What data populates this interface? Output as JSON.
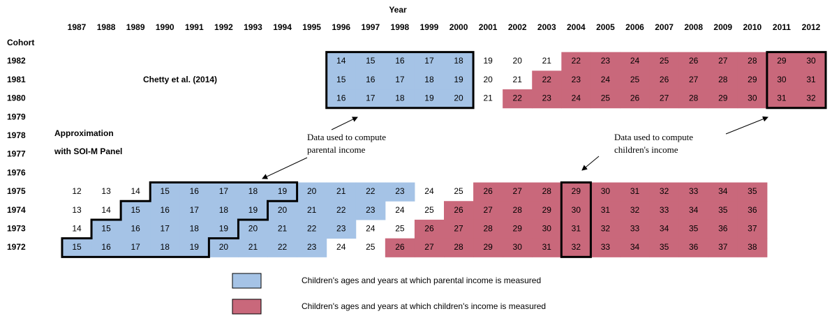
{
  "header": {
    "title": "Year",
    "row_title": "Cohort",
    "years": [
      "1987",
      "1988",
      "1989",
      "1990",
      "1991",
      "1992",
      "1993",
      "1994",
      "1995",
      "1996",
      "1997",
      "1998",
      "1999",
      "2000",
      "2001",
      "2002",
      "2003",
      "2004",
      "2005",
      "2006",
      "2007",
      "2008",
      "2009",
      "2010",
      "2011",
      "2012"
    ]
  },
  "rows": [
    {
      "cohort": "1982",
      "ages": [
        14,
        15,
        16,
        17,
        18,
        19,
        20,
        21,
        22,
        23,
        24,
        25,
        26,
        27,
        28,
        29,
        30
      ],
      "colors": [
        "#a5c3e6",
        "#a5c3e6",
        "#a5c3e6",
        "#a5c3e6",
        "#a5c3e6",
        null,
        null,
        null,
        "#c9687b",
        "#c9687b",
        "#c9687b",
        "#c9687b",
        "#c9687b",
        "#c9687b",
        "#c9687b",
        "#c9687b",
        "#c9687b"
      ]
    },
    {
      "cohort": "1981",
      "ages": [
        15,
        16,
        17,
        18,
        19,
        20,
        21,
        22,
        23,
        24,
        25,
        26,
        27,
        28,
        29,
        30,
        31
      ],
      "colors": [
        "#a5c3e6",
        "#a5c3e6",
        "#a5c3e6",
        "#a5c3e6",
        "#a5c3e6",
        null,
        null,
        "#c9687b",
        "#c9687b",
        "#c9687b",
        "#c9687b",
        "#c9687b",
        "#c9687b",
        "#c9687b",
        "#c9687b",
        "#c9687b",
        "#c9687b"
      ]
    },
    {
      "cohort": "1980",
      "ages": [
        16,
        17,
        18,
        19,
        20,
        21,
        22,
        23,
        24,
        25,
        26,
        27,
        28,
        29,
        30,
        31,
        32
      ],
      "colors": [
        "#a5c3e6",
        "#a5c3e6",
        "#a5c3e6",
        "#a5c3e6",
        "#a5c3e6",
        null,
        "#c9687b",
        "#c9687b",
        "#c9687b",
        "#c9687b",
        "#c9687b",
        "#c9687b",
        "#c9687b",
        "#c9687b",
        "#c9687b",
        "#c9687b",
        "#c9687b"
      ]
    },
    {
      "cohort": "1979",
      "ages": [],
      "colors": []
    },
    {
      "cohort": "1978",
      "ages": [],
      "colors": []
    },
    {
      "cohort": "1977",
      "ages": [],
      "colors": []
    },
    {
      "cohort": "1976",
      "ages": [],
      "colors": []
    },
    {
      "cohort": "1975",
      "ages": [
        12,
        13,
        14,
        15,
        16,
        17,
        18,
        19,
        20,
        21,
        22,
        23,
        24,
        25,
        26,
        27,
        28,
        29,
        30,
        31,
        32,
        33,
        34,
        35
      ],
      "colors": [
        null,
        null,
        null,
        "#a5c3e6",
        "#a5c3e6",
        "#a5c3e6",
        "#a5c3e6",
        "#a5c3e6",
        "#a5c3e6",
        "#a5c3e6",
        "#a5c3e6",
        "#a5c3e6",
        null,
        null,
        "#c9687b",
        "#c9687b",
        "#c9687b",
        "#c9687b",
        "#c9687b",
        "#c9687b",
        "#c9687b",
        "#c9687b",
        "#c9687b",
        "#c9687b"
      ]
    },
    {
      "cohort": "1974",
      "ages": [
        13,
        14,
        15,
        16,
        17,
        18,
        19,
        20,
        21,
        22,
        23,
        24,
        25,
        26,
        27,
        28,
        29,
        30,
        31,
        32,
        33,
        34,
        35,
        36
      ],
      "colors": [
        null,
        null,
        "#a5c3e6",
        "#a5c3e6",
        "#a5c3e6",
        "#a5c3e6",
        "#a5c3e6",
        "#a5c3e6",
        "#a5c3e6",
        "#a5c3e6",
        "#a5c3e6",
        null,
        null,
        "#c9687b",
        "#c9687b",
        "#c9687b",
        "#c9687b",
        "#c9687b",
        "#c9687b",
        "#c9687b",
        "#c9687b",
        "#c9687b",
        "#c9687b",
        "#c9687b"
      ]
    },
    {
      "cohort": "1973",
      "ages": [
        14,
        15,
        16,
        17,
        18,
        19,
        20,
        21,
        22,
        23,
        24,
        25,
        26,
        27,
        28,
        29,
        30,
        31,
        32,
        33,
        34,
        35,
        36,
        37
      ],
      "colors": [
        null,
        "#a5c3e6",
        "#a5c3e6",
        "#a5c3e6",
        "#a5c3e6",
        "#a5c3e6",
        "#a5c3e6",
        "#a5c3e6",
        "#a5c3e6",
        "#a5c3e6",
        null,
        null,
        "#c9687b",
        "#c9687b",
        "#c9687b",
        "#c9687b",
        "#c9687b",
        "#c9687b",
        "#c9687b",
        "#c9687b",
        "#c9687b",
        "#c9687b",
        "#c9687b",
        "#c9687b"
      ]
    },
    {
      "cohort": "1972",
      "ages": [
        15,
        16,
        17,
        18,
        19,
        20,
        21,
        22,
        23,
        24,
        25,
        26,
        27,
        28,
        29,
        30,
        31,
        32,
        33,
        34,
        35,
        36,
        37,
        38
      ],
      "colors": [
        "#a5c3e6",
        "#a5c3e6",
        "#a5c3e6",
        "#a5c3e6",
        "#a5c3e6",
        "#a5c3e6",
        "#a5c3e6",
        "#a5c3e6",
        "#a5c3e6",
        null,
        null,
        "#c9687b",
        "#c9687b",
        "#c9687b",
        "#c9687b",
        "#c9687b",
        "#c9687b",
        "#c9687b",
        "#c9687b",
        "#c9687b",
        "#c9687b",
        "#c9687b",
        "#c9687b",
        "#c9687b"
      ]
    }
  ],
  "annotations": {
    "chetty": "Chetty et al. (2014)",
    "approx": [
      "Approximation",
      "with SOI-M Panel"
    ],
    "parental_note": [
      "Data used to compute",
      "parental income"
    ],
    "children_note": [
      "Data used to compute",
      "children's income"
    ]
  },
  "legend": [
    {
      "color": "#a5c3e6",
      "label": "Children's ages and years at which parental income is measured"
    },
    {
      "color": "#c9687b",
      "label": "Children's ages and years at which children's income is measured"
    }
  ]
}
